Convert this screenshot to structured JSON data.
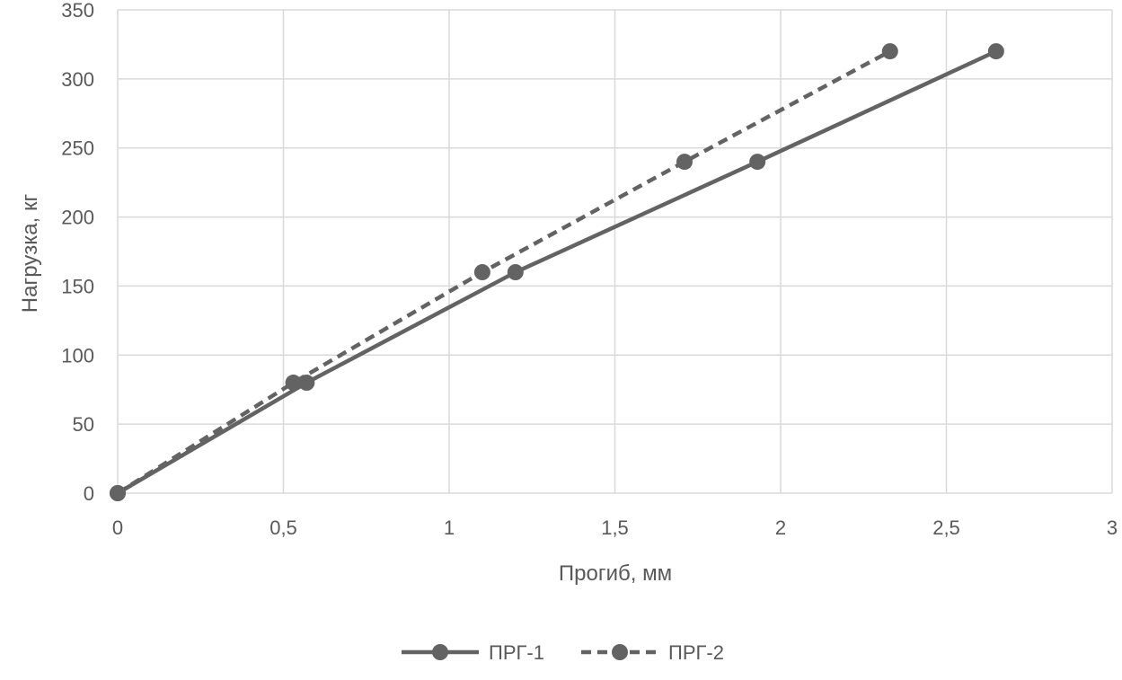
{
  "chart_data": {
    "type": "line",
    "title": "",
    "xlabel": "Прогиб, мм",
    "ylabel": "Нагрузка, кг",
    "xlim": [
      0,
      3
    ],
    "ylim": [
      0,
      350
    ],
    "x_ticks": [
      0,
      0.5,
      1,
      1.5,
      2,
      2.5,
      3
    ],
    "x_tick_labels": [
      "0",
      "0,5",
      "1",
      "1,5",
      "2",
      "2,5",
      "3"
    ],
    "y_ticks": [
      0,
      50,
      100,
      150,
      200,
      250,
      300,
      350
    ],
    "y_tick_labels": [
      "0",
      "50",
      "100",
      "150",
      "200",
      "250",
      "300",
      "350"
    ],
    "grid": true,
    "legend_position": "bottom",
    "series": [
      {
        "name": "ПРГ-1",
        "line_style": "solid",
        "color": "#636363",
        "points": [
          {
            "x": 0,
            "y": 0
          },
          {
            "x": 0.57,
            "y": 80
          },
          {
            "x": 1.2,
            "y": 160
          },
          {
            "x": 1.93,
            "y": 240
          },
          {
            "x": 2.65,
            "y": 320
          }
        ]
      },
      {
        "name": "ПРГ-2",
        "line_style": "dashed",
        "color": "#636363",
        "points": [
          {
            "x": 0,
            "y": 0
          },
          {
            "x": 0.53,
            "y": 80
          },
          {
            "x": 1.1,
            "y": 160
          },
          {
            "x": 1.71,
            "y": 240
          },
          {
            "x": 2.33,
            "y": 320
          }
        ]
      }
    ]
  },
  "colors": {
    "grid": "#d9d9d9",
    "text": "#595959",
    "series": "#636363"
  }
}
